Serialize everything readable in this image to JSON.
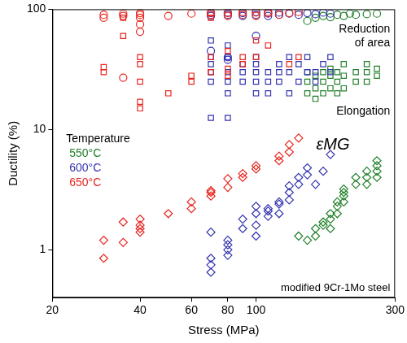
{
  "chart_data": {
    "type": "scatter",
    "xlabel": "Stress (MPa)",
    "ylabel": "Ductility (%)",
    "log": true,
    "grid": false,
    "xlim": [
      20,
      300
    ],
    "xticks": [
      20,
      40,
      60,
      80,
      100,
      300
    ],
    "ylim": [
      0.4,
      100
    ],
    "yticks": [
      1,
      10,
      100
    ],
    "legend_title": "Temperature",
    "annotations": [
      "Reduction of area",
      "Elongation",
      "εMG",
      "modified 9Cr-1Mo steel"
    ],
    "series": [
      {
        "name": "650°C",
        "color": "#e8251f",
        "marker": "circle",
        "x": [
          30,
          30,
          35,
          35,
          35,
          40,
          40,
          40,
          40,
          40,
          50,
          60,
          70,
          70,
          80,
          80,
          90,
          90,
          100,
          100,
          110,
          110,
          120,
          130,
          140
        ],
        "values": [
          85,
          90,
          27,
          92,
          88,
          65,
          75,
          85,
          90,
          93,
          88,
          92,
          90,
          94,
          88,
          93,
          90,
          95,
          88,
          94,
          92,
          95,
          90,
          93,
          95
        ]
      },
      {
        "name": "650°C",
        "color": "#e8251f",
        "marker": "square",
        "x": [
          30,
          30,
          35,
          35,
          40,
          40,
          40,
          40,
          40,
          50,
          60,
          60,
          70,
          70,
          70,
          80,
          80,
          80,
          90,
          90,
          100,
          100,
          110,
          130,
          140
        ],
        "values": [
          30,
          33,
          60,
          85,
          15,
          17,
          25,
          35,
          40,
          20,
          25,
          28,
          30,
          40,
          85,
          28,
          32,
          45,
          35,
          40,
          40,
          55,
          50,
          35,
          40
        ]
      },
      {
        "name": "650°C",
        "color": "#e8251f",
        "marker": "diamond",
        "x": [
          30,
          30,
          35,
          35,
          40,
          40,
          40,
          40,
          50,
          60,
          60,
          70,
          70,
          70,
          80,
          80,
          90,
          90,
          100,
          100,
          120,
          120,
          130,
          130,
          140
        ],
        "values": [
          0.85,
          1.2,
          1.15,
          1.7,
          1.4,
          1.5,
          1.6,
          1.8,
          2.0,
          2.5,
          2.2,
          3.1,
          3.0,
          2.8,
          3.3,
          3.9,
          4.0,
          4.3,
          4.7,
          5.0,
          5.5,
          6.0,
          6.5,
          7.5,
          8.5
        ]
      },
      {
        "name": "600°C",
        "color": "#3333b0",
        "marker": "circle",
        "x": [
          70,
          70,
          70,
          80,
          80,
          80,
          80,
          90,
          90,
          100,
          100,
          100,
          110,
          110,
          120,
          120,
          130,
          140,
          150,
          160,
          170,
          180
        ],
        "values": [
          45,
          88,
          93,
          38,
          40,
          90,
          94,
          88,
          93,
          60,
          90,
          95,
          88,
          93,
          90,
          94,
          92,
          90,
          93,
          91,
          94,
          92
        ]
      },
      {
        "name": "600°C",
        "color": "#3333b0",
        "marker": "square",
        "x": [
          70,
          70,
          70,
          70,
          70,
          70,
          80,
          80,
          80,
          80,
          80,
          80,
          90,
          90,
          90,
          100,
          100,
          100,
          100,
          100,
          110,
          110,
          110,
          120,
          120,
          120,
          130,
          130,
          130,
          140,
          140,
          150,
          150,
          160,
          160,
          170,
          180,
          180
        ],
        "values": [
          12.5,
          25,
          30,
          35,
          40,
          55,
          12.5,
          20,
          25,
          30,
          40,
          50,
          25,
          30,
          35,
          20,
          25,
          30,
          35,
          40,
          20,
          25,
          30,
          25,
          30,
          35,
          20,
          30,
          40,
          25,
          35,
          30,
          40,
          25,
          30,
          35,
          30,
          40
        ]
      },
      {
        "name": "600°C",
        "color": "#3333b0",
        "marker": "diamond",
        "x": [
          70,
          70,
          70,
          70,
          80,
          80,
          80,
          80,
          90,
          90,
          100,
          100,
          100,
          100,
          110,
          110,
          110,
          120,
          120,
          120,
          130,
          130,
          130,
          140,
          140,
          150,
          150,
          160,
          170,
          180
        ],
        "values": [
          0.65,
          0.75,
          0.85,
          1.4,
          0.9,
          1.0,
          1.1,
          1.2,
          1.5,
          1.8,
          1.3,
          1.6,
          2.0,
          2.3,
          1.9,
          2.1,
          2.2,
          2.0,
          2.4,
          2.5,
          2.6,
          3.0,
          3.4,
          3.5,
          4.0,
          4.2,
          4.8,
          3.5,
          4.5,
          6.2
        ]
      },
      {
        "name": "550°C",
        "color": "#22802a",
        "marker": "circle",
        "x": [
          150,
          160,
          170,
          180,
          190,
          200,
          210,
          220,
          240,
          260
        ],
        "values": [
          80,
          85,
          88,
          86,
          90,
          88,
          92,
          90,
          91,
          92
        ]
      },
      {
        "name": "550°C",
        "color": "#22802a",
        "marker": "square",
        "x": [
          150,
          150,
          150,
          160,
          160,
          160,
          170,
          170,
          170,
          180,
          180,
          180,
          190,
          190,
          190,
          200,
          200,
          200,
          220,
          220,
          240,
          240,
          240,
          260,
          260
        ],
        "values": [
          20,
          25,
          30,
          18,
          22,
          28,
          20,
          25,
          30,
          22,
          28,
          32,
          20,
          25,
          30,
          22,
          28,
          35,
          25,
          30,
          25,
          30,
          35,
          28,
          32
        ]
      },
      {
        "name": "550°C",
        "color": "#22802a",
        "marker": "diamond",
        "x": [
          140,
          150,
          160,
          160,
          170,
          170,
          180,
          180,
          180,
          190,
          190,
          190,
          200,
          200,
          200,
          200,
          220,
          220,
          240,
          240,
          240,
          260,
          260,
          260,
          260
        ],
        "values": [
          1.3,
          1.2,
          1.3,
          1.5,
          1.6,
          1.7,
          1.5,
          1.8,
          2.0,
          2.0,
          2.3,
          2.5,
          2.5,
          2.8,
          3.0,
          3.2,
          3.5,
          4.0,
          3.5,
          4.0,
          4.5,
          4.0,
          4.5,
          5.0,
          5.5
        ]
      }
    ]
  }
}
